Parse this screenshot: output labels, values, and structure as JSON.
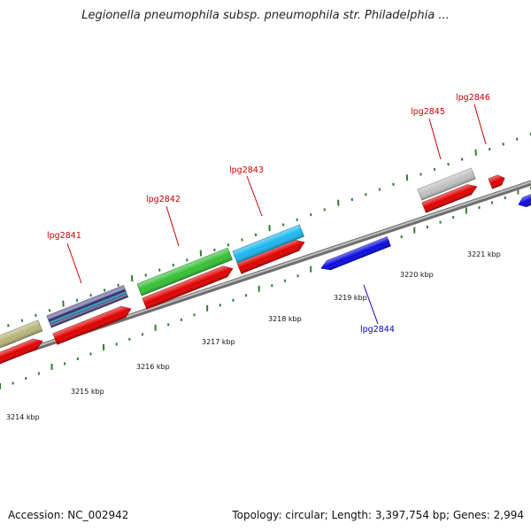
{
  "title": "Legionella pneumophila subsp. pneumophila str. Philadelphia ...",
  "footer": {
    "accession": "Accession: NC_002942",
    "summary": "Topology: circular; Length: 3,397,754 bp; Genes: 2,994"
  },
  "colors": {
    "forward_label": "#cc0000",
    "reverse_label": "#0000cc",
    "tick": "#2e7d32",
    "backbone": "#888888"
  },
  "scale_labels": [
    {
      "label": "3214 kbp"
    },
    {
      "label": "3215 kbp"
    },
    {
      "label": "3216 kbp"
    },
    {
      "label": "3217 kbp"
    },
    {
      "label": "3218 kbp"
    },
    {
      "label": "3219 kbp"
    },
    {
      "label": "3220 kbp"
    },
    {
      "label": "3221 kbp"
    }
  ],
  "gene_labels": [
    {
      "name": "lpg2841",
      "strand": "forward"
    },
    {
      "name": "lpg2842",
      "strand": "forward"
    },
    {
      "name": "lpg2843",
      "strand": "forward"
    },
    {
      "name": "lpg2844",
      "strand": "reverse"
    },
    {
      "name": "lpg2845",
      "strand": "forward"
    },
    {
      "name": "lpg2846",
      "strand": "forward"
    }
  ],
  "features": [
    {
      "type": "gene",
      "color": "#e00000",
      "track": "forward-gene"
    },
    {
      "type": "gene",
      "color": "#e00000",
      "track": "forward-gene"
    },
    {
      "type": "gene",
      "color": "#e00000",
      "track": "forward-gene"
    },
    {
      "type": "gene",
      "color": "#e00000",
      "track": "forward-gene"
    },
    {
      "type": "gene",
      "color": "#e00000",
      "track": "forward-gene"
    },
    {
      "type": "gene",
      "color": "#e00000",
      "track": "forward-gene"
    },
    {
      "type": "gene",
      "color": "#e00000",
      "track": "forward-gene"
    },
    {
      "type": "gene",
      "color": "#0a0ae0",
      "track": "reverse-gene"
    },
    {
      "type": "gene",
      "color": "#0a0ae0",
      "track": "reverse-gene"
    },
    {
      "type": "cds",
      "color": "#b8b47a",
      "track": "forward-cds"
    },
    {
      "type": "cds",
      "color": "#55508a",
      "track": "forward-cds"
    },
    {
      "type": "cds",
      "color": "#35c035",
      "track": "forward-cds"
    },
    {
      "type": "cds",
      "color": "#19b8f0",
      "track": "forward-cds"
    },
    {
      "type": "cds",
      "color": "#c0c0c0",
      "track": "forward-cds"
    }
  ]
}
